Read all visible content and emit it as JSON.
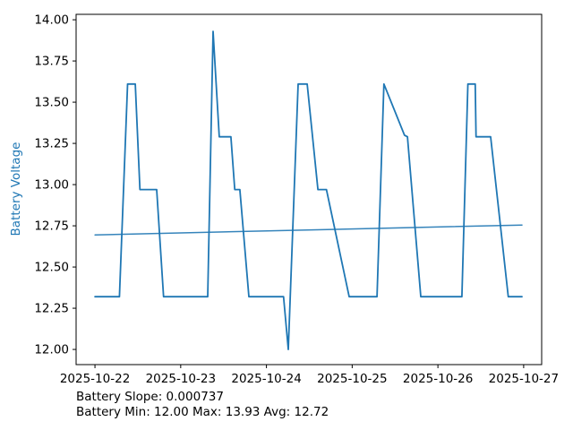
{
  "window": {
    "background": "#ffffff"
  },
  "colors": {
    "accent": "#1f77b4",
    "text": "#000000",
    "spine": "#000000",
    "background": "#ffffff"
  },
  "labels": {
    "ylabel": "Battery Voltage",
    "slope_line": "Battery Slope: 0.000737",
    "stats_line": "Battery Min: 12.00 Max: 13.93 Avg: 12.72"
  },
  "chart_data": {
    "type": "line",
    "title": "",
    "xlabel": "",
    "ylabel": "Battery Voltage",
    "grid": false,
    "legend": "none",
    "x_unit": "days since 2025-10-22 00:00",
    "xlim": [
      -0.22,
      5.21
    ],
    "ylim": [
      11.908,
      14.033
    ],
    "y_tick_values": [
      12.0,
      12.25,
      12.5,
      12.75,
      13.0,
      13.25,
      13.5,
      13.75,
      14.0
    ],
    "y_tick_labels": [
      "12.00",
      "12.25",
      "12.50",
      "12.75",
      "13.00",
      "13.25",
      "13.50",
      "13.75",
      "14.00"
    ],
    "x_tick_values": [
      0,
      1,
      2,
      3,
      4,
      5
    ],
    "x_tick_labels": [
      "2025-10-22",
      "2025-10-23",
      "2025-10-24",
      "2025-10-25",
      "2025-10-26",
      "2025-10-27"
    ],
    "annotations": [
      "Battery Slope: 0.000737",
      "Battery Min: 12.00 Max: 13.93 Avg: 12.72"
    ],
    "stats": {
      "slope": 0.000737,
      "min": 12.0,
      "max": 13.93,
      "avg": 12.72
    },
    "series": [
      {
        "name": "battery-voltage",
        "color": "#1f77b4",
        "width": 1.8,
        "opacity": 1,
        "points": [
          [
            0.0,
            12.32
          ],
          [
            0.285,
            12.32
          ],
          [
            0.38,
            13.61
          ],
          [
            0.47,
            13.61
          ],
          [
            0.525,
            12.97
          ],
          [
            0.72,
            12.97
          ],
          [
            0.8,
            12.32
          ],
          [
            1.315,
            12.32
          ],
          [
            1.378,
            13.93
          ],
          [
            1.45,
            13.29
          ],
          [
            1.585,
            13.29
          ],
          [
            1.63,
            12.97
          ],
          [
            1.69,
            12.97
          ],
          [
            1.795,
            12.32
          ],
          [
            2.2,
            12.32
          ],
          [
            2.255,
            12.0
          ],
          [
            2.37,
            13.61
          ],
          [
            2.475,
            13.61
          ],
          [
            2.6,
            12.97
          ],
          [
            2.7,
            12.97
          ],
          [
            2.965,
            12.32
          ],
          [
            3.29,
            12.32
          ],
          [
            3.37,
            13.61
          ],
          [
            3.61,
            13.3
          ],
          [
            3.645,
            13.29
          ],
          [
            3.8,
            12.32
          ],
          [
            4.28,
            12.32
          ],
          [
            4.35,
            13.61
          ],
          [
            4.435,
            13.61
          ],
          [
            4.445,
            13.29
          ],
          [
            4.615,
            13.29
          ],
          [
            4.82,
            12.32
          ],
          [
            4.98,
            12.32
          ]
        ]
      },
      {
        "name": "trend",
        "color": "#1f77b4",
        "width": 1.5,
        "opacity": 0.9,
        "points": [
          [
            0.0,
            12.695
          ],
          [
            4.98,
            12.755
          ]
        ]
      }
    ]
  }
}
